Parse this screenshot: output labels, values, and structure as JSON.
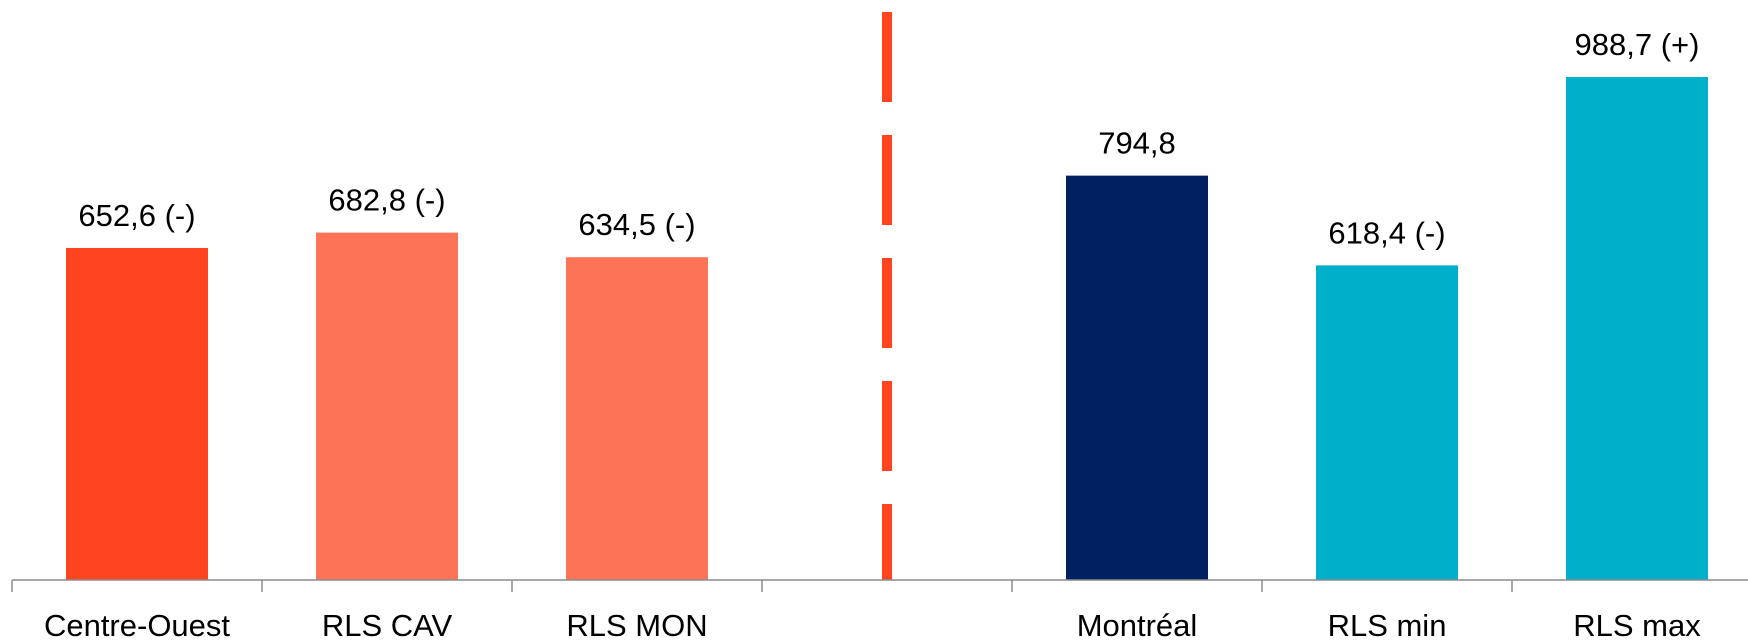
{
  "chart_data": {
    "type": "bar",
    "categories": [
      "Centre-Ouest",
      "RLS CAV",
      "RLS MON",
      "",
      "Montréal",
      "RLS min",
      "RLS max"
    ],
    "values": [
      652.6,
      682.8,
      634.5,
      null,
      794.8,
      618.4,
      988.7
    ],
    "labels": [
      "652,6 (-)",
      "682,8 (-)",
      "634,5 (-)",
      "",
      "794,8",
      "618,4 (-)",
      "988,7 (+)"
    ],
    "colors": [
      "#FF441F",
      "#FC7358",
      "#FC7358",
      "",
      "#00205F",
      "#00AFC9",
      "#00AFC9"
    ],
    "ylim": [
      0,
      1140
    ],
    "title": "",
    "xlabel": "",
    "ylabel": "",
    "grid": false,
    "separator": {
      "style": "dashed",
      "color": "#FF441F",
      "after_category_index": 3
    }
  }
}
